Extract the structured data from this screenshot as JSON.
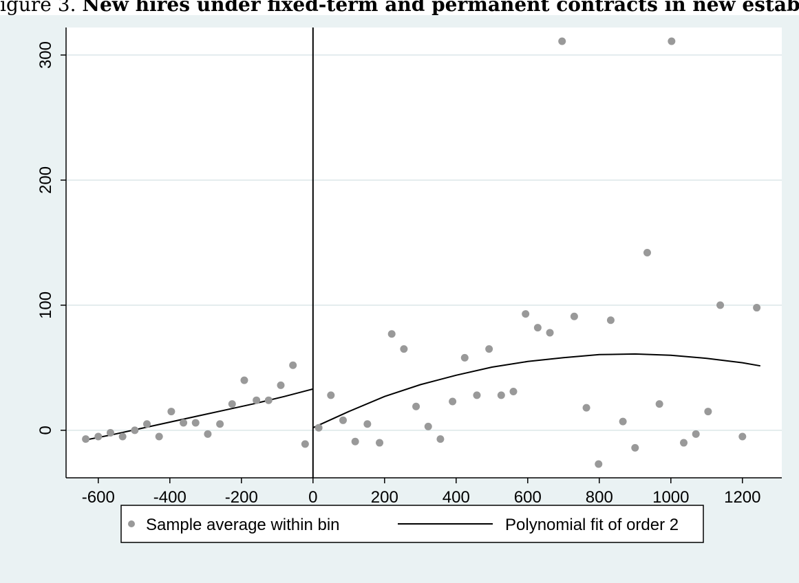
{
  "header": {
    "title_prefix": "igure 3.",
    "title_main": "New hires under fixed-term and permanent contracts in new establishme"
  },
  "colors": {
    "points": "#999999",
    "fit_line": "#000000",
    "grid": "#dbe6e8",
    "background": "#eaf2f3",
    "plot_area": "#ffffff"
  },
  "chart_data": {
    "type": "scatter",
    "title": "",
    "xlabel": "",
    "ylabel": "",
    "xlim": [
      -690,
      1310
    ],
    "ylim": [
      -38,
      322
    ],
    "xticks": [
      -600,
      -400,
      -200,
      0,
      200,
      400,
      600,
      800,
      1000,
      1200
    ],
    "xtick_labels": [
      "-600",
      "-400",
      "-200",
      "0",
      "200",
      "400",
      "600",
      "800",
      "1000",
      "1200"
    ],
    "yticks": [
      0,
      100,
      200,
      300
    ],
    "ytick_labels": [
      "0",
      "100",
      "200",
      "300"
    ],
    "grid": true,
    "cutoff_x": 0,
    "legend_position": "bottom",
    "series": [
      {
        "name": "Sample average within bin",
        "kind": "points",
        "x": [
          -635,
          -600,
          -566,
          -532,
          -498,
          -464,
          -430,
          -396,
          -362,
          -328,
          -294,
          -260,
          -226,
          -192,
          -158,
          -124,
          -90,
          -56,
          -22,
          16,
          50,
          84,
          118,
          152,
          186,
          220,
          254,
          288,
          322,
          356,
          390,
          424,
          458,
          492,
          526,
          560,
          594,
          628,
          662,
          696,
          730,
          764,
          798,
          832,
          866,
          900,
          934,
          968,
          1002,
          1036,
          1070,
          1104,
          1138,
          1200,
          1240
        ],
        "y": [
          -7,
          -5,
          -2,
          -5,
          0,
          5,
          -5,
          15,
          6,
          6,
          -3,
          5,
          21,
          40,
          24,
          24,
          36,
          52,
          -11,
          2,
          28,
          8,
          -9,
          5,
          -10,
          77,
          65,
          19,
          3,
          -7,
          23,
          58,
          28,
          65,
          28,
          31,
          93,
          82,
          78,
          311,
          91,
          18,
          -27,
          88,
          7,
          -14,
          142,
          21,
          311,
          -10,
          -3,
          15,
          100,
          -5,
          98
        ]
      },
      {
        "name": "Polynomial fit of order 2",
        "kind": "line",
        "segments": [
          {
            "x": [
              -640,
              -560,
              -480,
              -400,
              -320,
              -240,
              -160,
              -80,
              0
            ],
            "y": [
              -8,
              -3.5,
              1.5,
              6.5,
              11.5,
              16.5,
              21.5,
              27,
              33
            ]
          },
          {
            "x": [
              0,
              100,
              200,
              300,
              400,
              500,
              600,
              700,
              800,
              900,
              1000,
              1100,
              1200,
              1250
            ],
            "y": [
              2,
              15,
              27,
              36.5,
              44,
              50.5,
              55,
              58,
              60.5,
              61,
              60,
              57.5,
              54,
              51.5
            ]
          }
        ]
      }
    ]
  },
  "legend": {
    "point_label": "Sample average within bin",
    "line_label": "Polynomial fit of order 2"
  }
}
